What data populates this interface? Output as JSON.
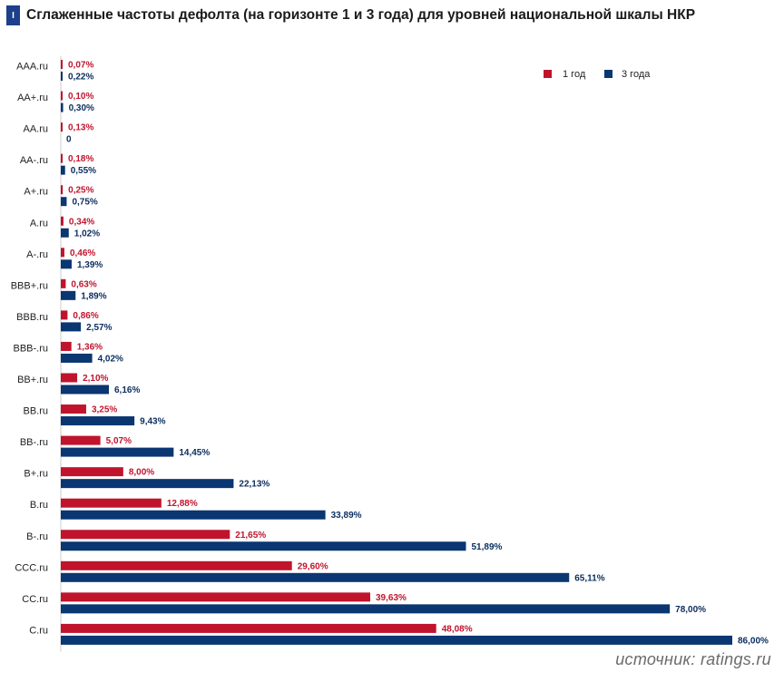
{
  "header": {
    "badge": "I",
    "title": "Сглаженные частоты дефолта (на горизонте 1 и 3 года) для уровней национальной шкалы НКР"
  },
  "source": "источник: ratings.ru",
  "colors": {
    "series_1y": "#c0142d",
    "series_3y": "#0a3671",
    "axis": "#cccccc"
  },
  "chart_data": {
    "type": "bar",
    "orientation": "horizontal",
    "categories": [
      "AAA.ru",
      "AA+.ru",
      "AA.ru",
      "AA-.ru",
      "A+.ru",
      "A.ru",
      "A-.ru",
      "BBB+.ru",
      "BBB.ru",
      "BBB-.ru",
      "BB+.ru",
      "BB.ru",
      "BB-.ru",
      "B+.ru",
      "B.ru",
      "B-.ru",
      "CCC.ru",
      "CC.ru",
      "C.ru"
    ],
    "series": [
      {
        "name": "1 год",
        "values": [
          0.07,
          0.1,
          0.13,
          0.18,
          0.25,
          0.34,
          0.46,
          0.63,
          0.86,
          1.36,
          2.1,
          3.25,
          5.07,
          8.0,
          12.88,
          21.65,
          29.6,
          39.63,
          48.08
        ],
        "labels": [
          "0,07%",
          "0,10%",
          "0,13%",
          "0,18%",
          "0,25%",
          "0,34%",
          "0,46%",
          "0,63%",
          "0,86%",
          "1,36%",
          "2,10%",
          "3,25%",
          "5,07%",
          "8,00%",
          "12,88%",
          "21,65%",
          "29,60%",
          "39,63%",
          "48,08%"
        ]
      },
      {
        "name": "3 года",
        "values": [
          0.22,
          0.3,
          0,
          0.55,
          0.75,
          1.02,
          1.39,
          1.89,
          2.57,
          4.02,
          6.16,
          9.43,
          14.45,
          22.13,
          33.89,
          51.89,
          65.11,
          78.0,
          86.0
        ],
        "labels": [
          "0,22%",
          "0,30%",
          "0",
          "0,55%",
          "0,75%",
          "1,02%",
          "1,39%",
          "1,89%",
          "2,57%",
          "4,02%",
          "6,16%",
          "9,43%",
          "14,45%",
          "22,13%",
          "33,89%",
          "51,89%",
          "65,11%",
          "78,00%",
          "86,00%"
        ]
      }
    ],
    "xlim": [
      0,
      86
    ],
    "legend_position": "top-right",
    "grid": false
  }
}
